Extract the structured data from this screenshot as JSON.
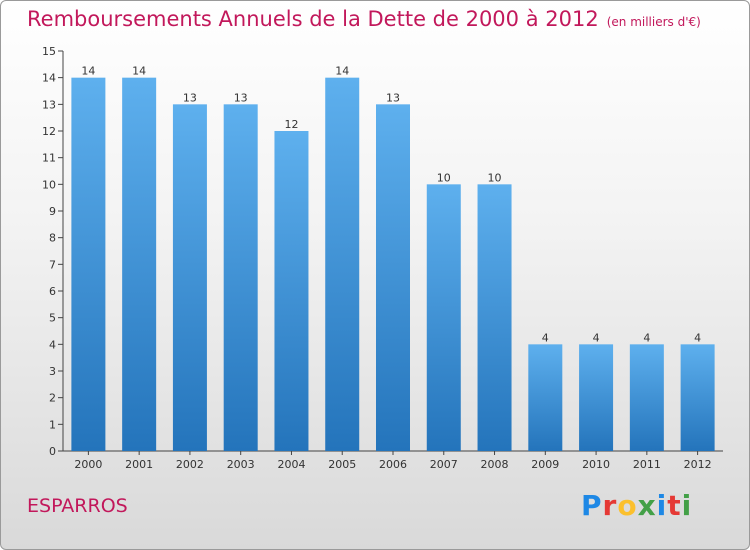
{
  "page": {
    "title": "Remboursements Annuels de la Dette de 2000 à 2012",
    "unit": "(en milliers d'€)",
    "commune": "ESPARROS",
    "logo": {
      "letters": [
        "P",
        "r",
        "o",
        "x",
        "i",
        "t",
        "i"
      ],
      "colors": [
        "#1e88e5",
        "#e53935",
        "#fbc02d",
        "#43a047",
        "#1e88e5",
        "#e53935",
        "#43a047"
      ]
    }
  },
  "chart_data": {
    "type": "bar",
    "title": "Remboursements Annuels de la Dette de 2000 à 2012",
    "xlabel": "",
    "ylabel": "",
    "categories": [
      "2000",
      "2001",
      "2002",
      "2003",
      "2004",
      "2005",
      "2006",
      "2007",
      "2008",
      "2009",
      "2010",
      "2011",
      "2012"
    ],
    "values": [
      14,
      14,
      13,
      13,
      12,
      14,
      13,
      10,
      10,
      4,
      4,
      4,
      4
    ],
    "ylim": [
      0,
      15
    ],
    "yticks": [
      0,
      1,
      2,
      3,
      4,
      5,
      6,
      7,
      8,
      9,
      10,
      11,
      12,
      13,
      14,
      15
    ],
    "grid": false,
    "legend": "none",
    "bar_color": "#3d8fd6"
  }
}
